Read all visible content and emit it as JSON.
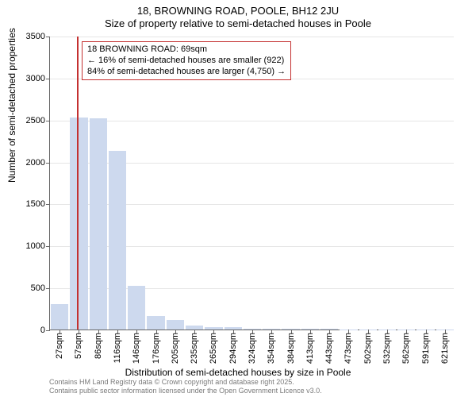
{
  "title": {
    "line1": "18, BROWNING ROAD, POOLE, BH12 2JU",
    "line2": "Size of property relative to semi-detached houses in Poole"
  },
  "chart": {
    "type": "histogram",
    "background_color": "#ffffff",
    "grid_color": "#e6e6e6",
    "axis_color": "#666666",
    "bar_color": "#cdd9ee",
    "ref_line_color": "#c43131",
    "ylim": [
      0,
      3500
    ],
    "ytick_step": 500,
    "yticks": [
      0,
      500,
      1000,
      1500,
      2000,
      2500,
      3000,
      3500
    ],
    "ylabel": "Number of semi-detached properties",
    "xlabel": "Distribution of semi-detached houses by size in Poole",
    "label_fontsize": 12,
    "tick_fontsize": 11,
    "x_categories": [
      "27sqm",
      "57sqm",
      "86sqm",
      "116sqm",
      "146sqm",
      "176sqm",
      "205sqm",
      "235sqm",
      "265sqm",
      "294sqm",
      "324sqm",
      "354sqm",
      "384sqm",
      "413sqm",
      "443sqm",
      "473sqm",
      "502sqm",
      "532sqm",
      "562sqm",
      "591sqm",
      "621sqm"
    ],
    "values": [
      300,
      2530,
      2520,
      2130,
      520,
      160,
      110,
      50,
      30,
      25,
      10,
      10,
      8,
      6,
      5,
      4,
      3,
      2,
      2,
      1,
      1
    ],
    "reference_value_x": 69,
    "x_min": 27,
    "x_step_approx": 29.7,
    "annotation": {
      "line1": "18 BROWNING ROAD: 69sqm",
      "line2": "← 16% of semi-detached houses are smaller (922)",
      "line3": "84% of semi-detached houses are larger (4,750) →",
      "box_border": "#c43131",
      "fontsize": 11
    }
  },
  "footer": {
    "line1": "Contains HM Land Registry data © Crown copyright and database right 2025.",
    "line2": "Contains public sector information licensed under the Open Government Licence v3.0.",
    "color": "#7a7a7a",
    "fontsize": 9
  }
}
